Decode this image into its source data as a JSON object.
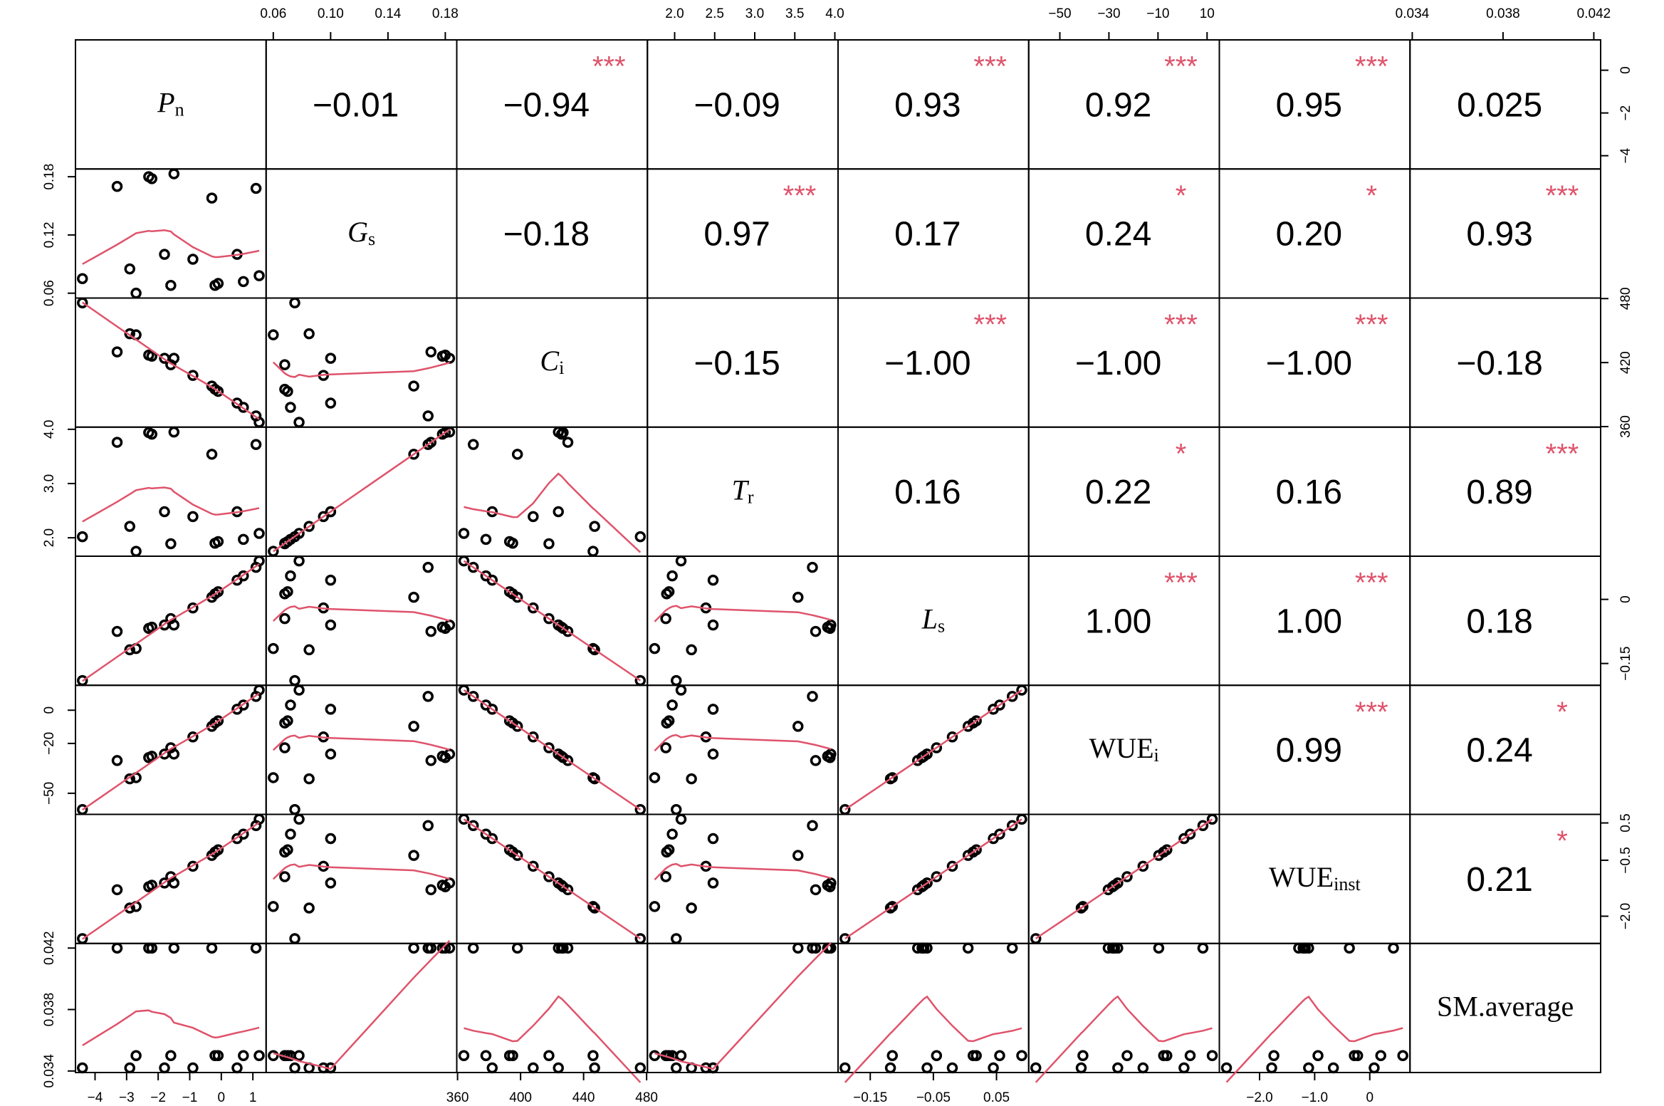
{
  "chart_data": {
    "type": "scatter_matrix",
    "smooth_color": "#DF536B",
    "star_color": "#DF536B",
    "variables": [
      {
        "name": "P",
        "sub": "n",
        "italic": true,
        "lim": [
          -4.62,
          1.42
        ],
        "values": [
          -4.4,
          -3.3,
          -2.9,
          -2.7,
          -2.3,
          -2.2,
          -1.8,
          -1.6,
          -1.5,
          -0.9,
          -0.3,
          -0.2,
          -0.1,
          0.5,
          0.7,
          1.1,
          1.2
        ],
        "xticks": [
          {
            "value": -4,
            "label": "−4"
          },
          {
            "value": -3,
            "label": "−3"
          },
          {
            "value": -2,
            "label": "−2"
          },
          {
            "value": -1,
            "label": "−1"
          },
          0,
          1
        ],
        "yticks": [
          {
            "value": -4,
            "label": "−4"
          },
          {
            "value": -2,
            "label": "−2"
          },
          0
        ],
        "r": [
          -0.01,
          -0.94,
          -0.09,
          0.93,
          0.92,
          0.95,
          0.025
        ],
        "r_labels": [
          "−0.01",
          "−0.94",
          "−0.09",
          "0.93",
          "0.92",
          "0.95",
          "0.025"
        ],
        "stars": [
          null,
          "***",
          null,
          "***",
          "***",
          "***",
          null
        ]
      },
      {
        "name": "G",
        "sub": "s",
        "italic": true,
        "lim": [
          0.055,
          0.188
        ],
        "values": [
          0.075,
          0.17,
          0.085,
          0.06,
          0.18,
          0.178,
          0.1,
          0.068,
          0.183,
          0.095,
          0.158,
          0.068,
          0.07,
          0.1,
          0.072,
          0.168,
          0.078
        ],
        "xticks": [
          0.06,
          {
            "value": 0.1,
            "label": "0.10"
          },
          0.14,
          0.18
        ],
        "yticks": [
          0.06,
          0.12,
          0.18
        ],
        "r": [
          -0.18,
          0.97,
          0.17,
          0.24,
          0.2,
          0.93
        ],
        "r_labels": [
          "−0.18",
          "0.97",
          "0.17",
          "0.24",
          "0.20",
          "0.93"
        ],
        "stars": [
          null,
          "***",
          null,
          "*",
          "*",
          "***"
        ]
      },
      {
        "name": "C",
        "sub": "i",
        "italic": true,
        "lim": [
          359.5,
          480.5
        ],
        "values": [
          476,
          430,
          447,
          446,
          427,
          426,
          424,
          418,
          424,
          408,
          398,
          395,
          393,
          382,
          378,
          370,
          364
        ],
        "xticks": [
          360,
          400,
          440,
          480
        ],
        "yticks": [
          360,
          420,
          480
        ],
        "r": [
          -0.15,
          -1,
          -1,
          -1,
          -0.18
        ],
        "r_labels": [
          "−0.15",
          "−1.00",
          "−1.00",
          "−1.00",
          "−0.18"
        ],
        "stars": [
          null,
          "***",
          "***",
          "***",
          null
        ]
      },
      {
        "name": "T",
        "sub": "r",
        "italic": true,
        "lim": [
          1.66,
          4.04
        ],
        "values": [
          2.02,
          3.76,
          2.21,
          1.75,
          3.94,
          3.91,
          2.48,
          1.89,
          3.95,
          2.39,
          3.54,
          1.9,
          1.93,
          2.48,
          1.97,
          3.72,
          2.08
        ],
        "xticks": [
          {
            "value": 2,
            "label": "2.0"
          },
          2.5,
          {
            "value": 3,
            "label": "3.0"
          },
          3.5,
          {
            "value": 4,
            "label": "4.0"
          }
        ],
        "yticks": [
          {
            "value": 2,
            "label": "2.0"
          },
          {
            "value": 3,
            "label": "3.0"
          },
          {
            "value": 4,
            "label": "4.0"
          }
        ],
        "r": [
          0.16,
          0.22,
          0.16,
          0.89
        ],
        "r_labels": [
          "0.16",
          "0.22",
          "0.16",
          "0.89"
        ],
        "stars": [
          null,
          "*",
          null,
          "***"
        ]
      },
      {
        "name": "L",
        "sub": "s",
        "italic": true,
        "lim": [
          -0.201,
          0.101
        ],
        "values": [
          -0.19,
          -0.075,
          -0.118,
          -0.115,
          -0.068,
          -0.065,
          -0.06,
          -0.045,
          -0.06,
          -0.02,
          0.005,
          0.013,
          0.018,
          0.045,
          0.055,
          0.075,
          0.09
        ],
        "xticks": [
          {
            "value": -0.15,
            "label": "−0.15"
          },
          {
            "value": -0.05,
            "label": "−0.05"
          },
          0.05
        ],
        "yticks": [
          {
            "value": -0.15,
            "label": "−0.15"
          },
          0
        ],
        "r": [
          1,
          1,
          0.18
        ],
        "r_labels": [
          "1.00",
          "1.00",
          "0.18"
        ],
        "stars": [
          "***",
          "***",
          null
        ]
      },
      {
        "name": "WUE",
        "sub": "i",
        "italic": false,
        "lim": [
          -62.7,
          15
        ],
        "values": [
          -59.8,
          -30.3,
          -41.3,
          -40.6,
          -28.5,
          -27.7,
          -26.4,
          -22.6,
          -26.4,
          -16.1,
          -9.7,
          -7.7,
          -6.4,
          0.6,
          3.1,
          8.3,
          12.1
        ],
        "xticks": [
          {
            "value": -50,
            "label": "−50"
          },
          {
            "value": -30,
            "label": "−30"
          },
          {
            "value": -10,
            "label": "−10"
          },
          10
        ],
        "yticks": [
          {
            "value": -50,
            "label": "−50"
          },
          {
            "value": -20,
            "label": "−20"
          },
          0
        ],
        "r": [
          0.99,
          0.24
        ],
        "r_labels": [
          "0.99",
          "0.24"
        ],
        "stars": [
          "***",
          "*"
        ]
      },
      {
        "name": "WUE",
        "sub": "inst",
        "italic": false,
        "lim": [
          -2.73,
          0.73
        ],
        "values": [
          -2.6,
          -1.29,
          -1.78,
          -1.74,
          -1.21,
          -1.17,
          -1.11,
          -0.94,
          -1.11,
          -0.66,
          -0.37,
          -0.28,
          -0.22,
          0.08,
          0.2,
          0.43,
          0.6
        ],
        "xticks": [
          {
            "value": -2,
            "label": "−2.0"
          },
          {
            "value": -1,
            "label": "−1.0"
          },
          0
        ],
        "yticks": [
          {
            "value": -2,
            "label": "−2.0"
          },
          {
            "value": -0.5,
            "label": "−0.5"
          },
          0.5
        ],
        "r": [
          0.21
        ],
        "r_labels": [
          "0.21"
        ],
        "stars": [
          "*"
        ]
      },
      {
        "name": "SM.average",
        "italic": false,
        "lim": [
          0.0339,
          0.0423
        ],
        "values": [
          0.0342,
          0.042,
          0.0342,
          0.035,
          0.042,
          0.042,
          0.0342,
          0.035,
          0.042,
          0.0342,
          0.042,
          0.035,
          0.035,
          0.0342,
          0.035,
          0.042,
          0.035
        ],
        "xticks": [
          0.034,
          0.038,
          0.042
        ],
        "yticks": [
          0.034,
          0.038,
          0.042
        ],
        "r": [],
        "r_labels": [],
        "stars": []
      }
    ]
  }
}
